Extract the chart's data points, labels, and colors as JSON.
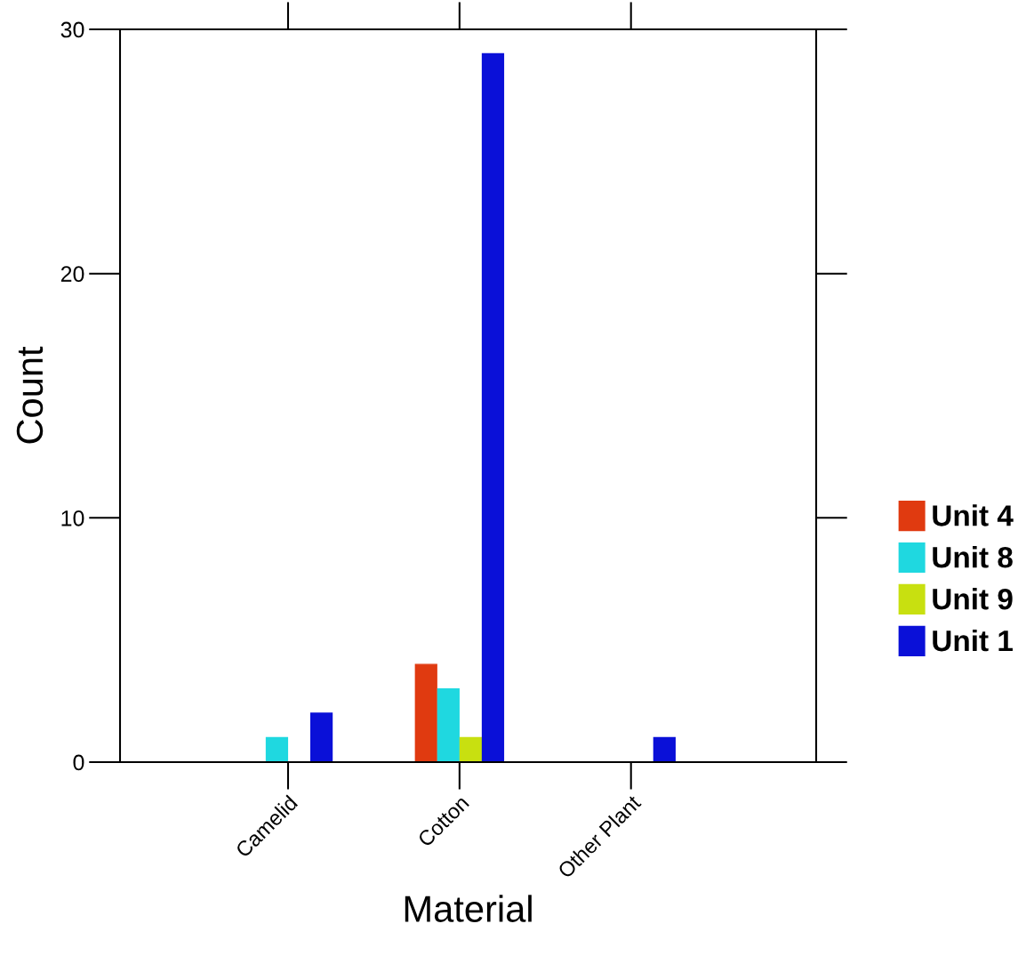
{
  "chart_data": {
    "type": "bar",
    "xlabel": "Material",
    "ylabel": "Count",
    "categories": [
      "Camelid",
      "Cotton",
      "Other Plant"
    ],
    "series": [
      {
        "name": "Unit 4",
        "color": "#e03a10",
        "values": [
          0,
          4,
          0
        ]
      },
      {
        "name": "Unit 8",
        "color": "#1fd8e0",
        "values": [
          1,
          3,
          0
        ]
      },
      {
        "name": "Unit 9",
        "color": "#c8e010",
        "values": [
          0,
          1,
          0
        ]
      },
      {
        "name": "Unit 1",
        "color": "#0a10d8",
        "values": [
          2,
          29,
          1
        ]
      }
    ],
    "ylim": [
      0,
      30
    ],
    "yticks": [
      0,
      10,
      20,
      30
    ],
    "grid": false,
    "legend": "right"
  }
}
